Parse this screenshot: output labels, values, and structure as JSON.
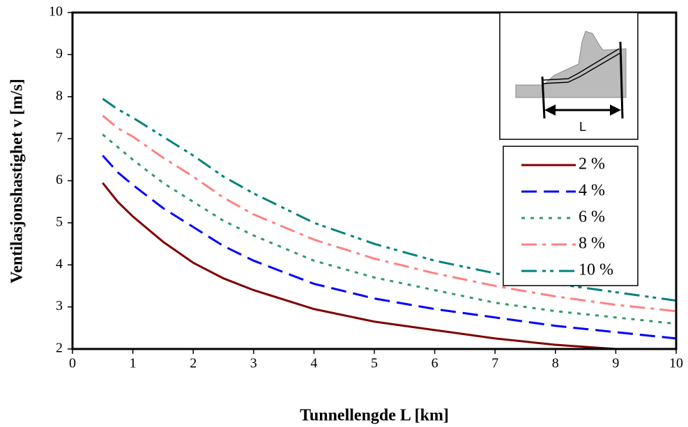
{
  "chart_data": {
    "type": "line",
    "xlabel": "Tunnellengde L [km]",
    "ylabel": "Ventilasjonshastighet v [m/s]",
    "inset_label": "L",
    "x": [
      0.5,
      0.75,
      1,
      1.5,
      2,
      2.5,
      3,
      4,
      5,
      6,
      7,
      8,
      9,
      10
    ],
    "xlim": [
      0,
      10
    ],
    "xticks": [
      0,
      1,
      2,
      3,
      4,
      5,
      6,
      7,
      8,
      9,
      10
    ],
    "ylim": [
      2,
      10
    ],
    "yticks": [
      2,
      3,
      4,
      5,
      6,
      7,
      8,
      9,
      10
    ],
    "legend": "right",
    "series": [
      {
        "name": "2 %",
        "color": "#800000",
        "dash": "solid",
        "values": [
          5.95,
          5.5,
          5.15,
          4.55,
          4.05,
          3.68,
          3.4,
          2.95,
          2.65,
          2.45,
          2.25,
          2.1,
          2.0,
          2.0
        ]
      },
      {
        "name": "4 %",
        "color": "#0000ff",
        "dash": "dash",
        "values": [
          6.6,
          6.2,
          5.9,
          5.35,
          4.9,
          4.45,
          4.1,
          3.55,
          3.2,
          2.95,
          2.75,
          2.55,
          2.4,
          2.25
        ]
      },
      {
        "name": "6 %",
        "color": "#339966",
        "dash": "dot",
        "values": [
          7.1,
          6.8,
          6.5,
          5.95,
          5.5,
          5.05,
          4.7,
          4.1,
          3.7,
          3.4,
          3.1,
          2.9,
          2.75,
          2.6
        ]
      },
      {
        "name": "8 %",
        "color": "#ff8080",
        "dash": "dashdot",
        "values": [
          7.55,
          7.25,
          7.05,
          6.55,
          6.1,
          5.6,
          5.2,
          4.6,
          4.15,
          3.8,
          3.5,
          3.25,
          3.05,
          2.9
        ]
      },
      {
        "name": "10 %",
        "color": "#008080",
        "dash": "dashdotdot",
        "values": [
          7.95,
          7.7,
          7.5,
          7.05,
          6.6,
          6.1,
          5.7,
          5.0,
          4.5,
          4.1,
          3.8,
          3.55,
          3.35,
          3.15
        ]
      }
    ]
  }
}
